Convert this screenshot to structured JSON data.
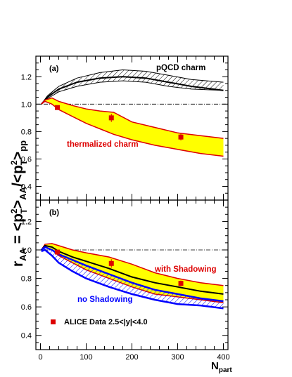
{
  "chart_data": [
    {
      "type": "line",
      "panel_label": "(a)",
      "ylabel": "r_AA = <p_T^2>_AA / <p_T^2>_pp",
      "xlim": [
        -10,
        410
      ],
      "ylim": [
        0.3,
        1.35
      ],
      "x_ticks": [
        0,
        100,
        200,
        300,
        400
      ],
      "y_ticks": [
        0.4,
        0.6,
        0.8,
        1.0,
        1.2
      ],
      "reference_line": 1.0,
      "series": [
        {
          "name": "pQCD charm",
          "kind": "hatched_band",
          "color": "#000000",
          "x": [
            2,
            15,
            40,
            80,
            130,
            180,
            230,
            280,
            330,
            400
          ],
          "upper": [
            1.0,
            1.06,
            1.13,
            1.19,
            1.23,
            1.25,
            1.24,
            1.21,
            1.18,
            1.16
          ],
          "lower": [
            1.0,
            1.04,
            1.09,
            1.13,
            1.16,
            1.17,
            1.16,
            1.13,
            1.11,
            1.1
          ]
        },
        {
          "name": "pQCD charm central",
          "kind": "line",
          "color": "#000000",
          "x": [
            2,
            15,
            40,
            80,
            130,
            180,
            230,
            280,
            330,
            400
          ],
          "y": [
            1.0,
            1.05,
            1.11,
            1.16,
            1.19,
            1.2,
            1.19,
            1.16,
            1.13,
            1.1
          ]
        },
        {
          "name": "thermalized charm",
          "kind": "filled_band",
          "fill": "#ffff00",
          "color": "#dd0000",
          "x": [
            2,
            10,
            25,
            40,
            70,
            100,
            130,
            160,
            200,
            250,
            300,
            350,
            400
          ],
          "upper": [
            1.0,
            1.03,
            1.045,
            1.02,
            0.99,
            0.965,
            0.95,
            0.94,
            0.87,
            0.83,
            0.79,
            0.77,
            0.75
          ],
          "lower": [
            1.0,
            1.02,
            1.0,
            0.96,
            0.91,
            0.86,
            0.82,
            0.78,
            0.74,
            0.7,
            0.67,
            0.64,
            0.62
          ]
        }
      ],
      "data_points": {
        "name": "ALICE Data",
        "color": "#dd0000",
        "x": [
          37,
          155,
          307
        ],
        "y": [
          0.975,
          0.9,
          0.76
        ],
        "err": [
          0.015,
          0.03,
          0.025
        ]
      },
      "annotations": [
        "pQCD charm",
        "thermalized charm"
      ]
    },
    {
      "type": "line",
      "panel_label": "(b)",
      "xlabel": "N_part",
      "xlim": [
        -10,
        410
      ],
      "ylim": [
        0.3,
        1.35
      ],
      "x_ticks": [
        0,
        100,
        200,
        300,
        400
      ],
      "y_ticks": [
        0.4,
        0.6,
        0.8,
        1.0,
        1.2
      ],
      "reference_line": 1.0,
      "series": [
        {
          "name": "with Shadowing",
          "kind": "filled_band",
          "fill": "#ffff00",
          "color": "#dd0000",
          "x": [
            2,
            10,
            25,
            40,
            70,
            100,
            150,
            200,
            250,
            300,
            350,
            400
          ],
          "upper": [
            1.0,
            1.04,
            1.045,
            1.03,
            1.0,
            0.98,
            0.95,
            0.9,
            0.84,
            0.8,
            0.77,
            0.75
          ],
          "lower": [
            1.0,
            1.02,
            1.0,
            0.96,
            0.91,
            0.86,
            0.8,
            0.74,
            0.69,
            0.67,
            0.65,
            0.63
          ]
        },
        {
          "name": "with Shadowing central",
          "kind": "line",
          "color": "#000000",
          "x": [
            2,
            10,
            25,
            40,
            70,
            100,
            150,
            200,
            250,
            300,
            350,
            400
          ],
          "y": [
            1.0,
            1.03,
            1.02,
            0.99,
            0.95,
            0.92,
            0.87,
            0.81,
            0.77,
            0.74,
            0.71,
            0.69
          ]
        },
        {
          "name": "no Shadowing",
          "kind": "hatched_band",
          "color": "#0000ff",
          "x": [
            2,
            10,
            25,
            40,
            70,
            100,
            150,
            200,
            250,
            300,
            350,
            400
          ],
          "upper": [
            1.0,
            1.02,
            1.0,
            0.97,
            0.93,
            0.89,
            0.83,
            0.77,
            0.72,
            0.69,
            0.66,
            0.64
          ],
          "lower": [
            0.99,
            1.0,
            0.96,
            0.91,
            0.85,
            0.8,
            0.74,
            0.69,
            0.65,
            0.62,
            0.61,
            0.59
          ]
        }
      ],
      "data_points": {
        "name": "ALICE Data 2.5<|y|<4.0",
        "color": "#dd0000",
        "x": [
          37,
          155,
          307
        ],
        "y": [
          0.985,
          0.905,
          0.765
        ],
        "err": [
          0.015,
          0.03,
          0.02
        ]
      },
      "annotations": [
        "with Shadowing",
        "no Shadowing"
      ],
      "legend": {
        "label": "ALICE Data 2.5<|y|<4.0",
        "placement": "bottom-left"
      }
    }
  ]
}
